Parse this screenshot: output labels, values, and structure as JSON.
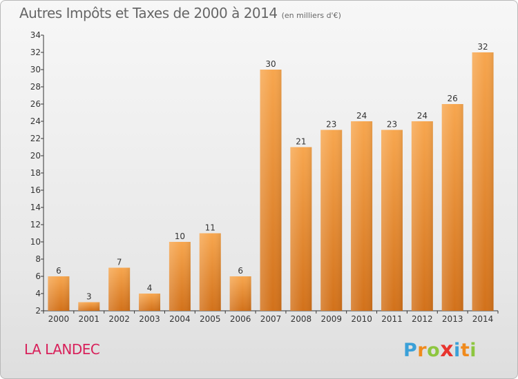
{
  "header": {
    "title": "Autres Impôts et Taxes de 2000 à 2014",
    "unit": "(en milliers d'€)"
  },
  "footer": {
    "place": "LA LANDEC",
    "brand": [
      {
        "ch": "P",
        "color": "#3aa0d8"
      },
      {
        "ch": "r",
        "color": "#f08a1c"
      },
      {
        "ch": "o",
        "color": "#8dc63f"
      },
      {
        "ch": "x",
        "color": "#e8342e"
      },
      {
        "ch": "i",
        "color": "#3aa0d8"
      },
      {
        "ch": "t",
        "color": "#f08a1c"
      },
      {
        "ch": "i",
        "color": "#8dc63f"
      }
    ]
  },
  "colors": {
    "bar_top": "#f7a64e",
    "bar_bottom": "#d2711a",
    "axis": "#333333",
    "grid": "#c8c8c8"
  },
  "chart_data": {
    "type": "bar",
    "title": "Autres Impôts et Taxes de 2000 à 2014",
    "subtitle": "(en milliers d'€)",
    "xlabel": "",
    "ylabel": "",
    "categories": [
      "2000",
      "2001",
      "2002",
      "2003",
      "2004",
      "2005",
      "2006",
      "2007",
      "2008",
      "2009",
      "2010",
      "2011",
      "2012",
      "2013",
      "2014"
    ],
    "values": [
      6,
      3,
      7,
      4,
      10,
      11,
      6,
      30,
      21,
      23,
      24,
      23,
      24,
      26,
      32
    ],
    "ylim": [
      2,
      34
    ],
    "yticks": [
      2,
      4,
      6,
      8,
      10,
      12,
      14,
      16,
      18,
      20,
      22,
      24,
      26,
      28,
      30,
      32,
      34
    ],
    "grid": false,
    "data_labels": true
  }
}
